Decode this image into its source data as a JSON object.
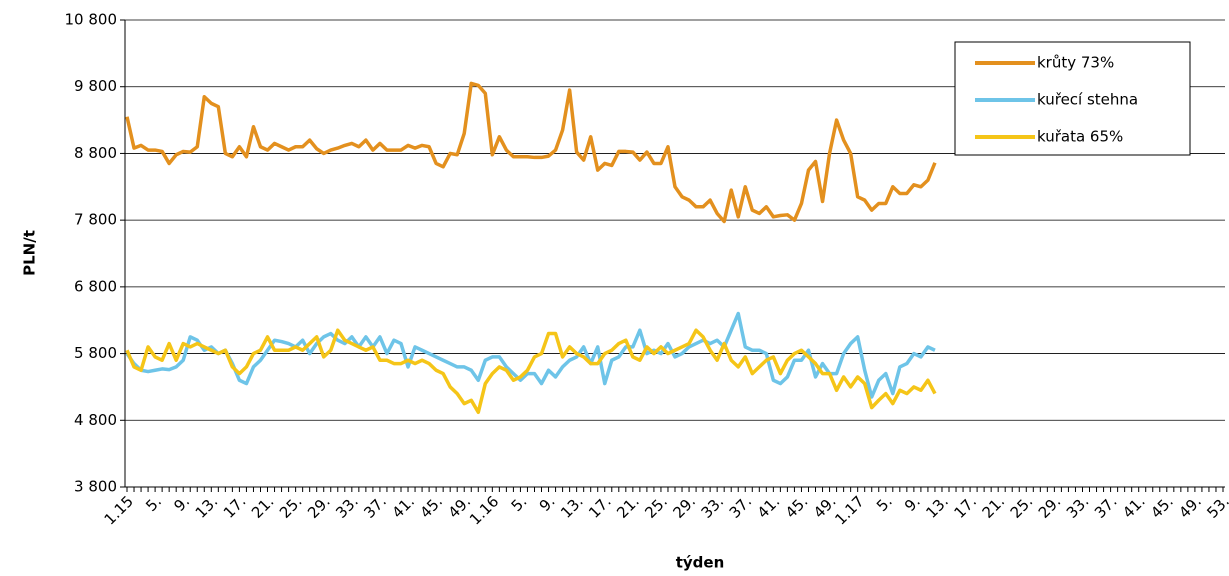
{
  "chart_data": {
    "type": "line",
    "y_label": "PLN/t",
    "x_label": "týden",
    "categories": [
      "1.15",
      null,
      null,
      null,
      "5.",
      null,
      null,
      null,
      "9.",
      null,
      null,
      null,
      "13.",
      null,
      null,
      null,
      "17.",
      null,
      null,
      null,
      "21.",
      null,
      null,
      null,
      "25.",
      null,
      null,
      null,
      "29.",
      null,
      null,
      null,
      "33.",
      null,
      null,
      null,
      "37.",
      null,
      null,
      null,
      "41.",
      null,
      null,
      null,
      "45.",
      null,
      null,
      null,
      "49.",
      null,
      null,
      null,
      "1.16",
      null,
      null,
      null,
      "5.",
      null,
      null,
      null,
      "9.",
      null,
      null,
      null,
      "13.",
      null,
      null,
      null,
      "17.",
      null,
      null,
      null,
      "21.",
      null,
      null,
      null,
      "25.",
      null,
      null,
      null,
      "29.",
      null,
      null,
      null,
      "33.",
      null,
      null,
      null,
      "37.",
      null,
      null,
      null,
      "41.",
      null,
      null,
      null,
      "45.",
      null,
      null,
      null,
      "49.",
      null,
      null,
      null,
      "1.17",
      null,
      null,
      null,
      "5.",
      null,
      null,
      null,
      "9.",
      null,
      null,
      null,
      "13.",
      null,
      null,
      null,
      "17.",
      null,
      null,
      null,
      "21.",
      null,
      null,
      null,
      "25.",
      null,
      null,
      null,
      "29.",
      null,
      null,
      null,
      "33.",
      null,
      null,
      null,
      "37.",
      null,
      null,
      null,
      "41.",
      null,
      null,
      null,
      "45.",
      null,
      null,
      null,
      "49.",
      null,
      null,
      null,
      "53."
    ],
    "series": [
      {
        "name": "krůty 73%",
        "color": "#e3901e",
        "values": [
          9350,
          8880,
          8920,
          8850,
          8850,
          8830,
          8650,
          8780,
          8830,
          8820,
          8900,
          9650,
          9550,
          9500,
          8800,
          8750,
          8900,
          8750,
          9200,
          8900,
          8850,
          8950,
          8900,
          8850,
          8900,
          8900,
          9000,
          8870,
          8800,
          8850,
          8880,
          8920,
          8950,
          8900,
          9000,
          8850,
          8950,
          8850,
          8850,
          8850,
          8920,
          8880,
          8920,
          8900,
          8650,
          8600,
          8800,
          8780,
          9100,
          9850,
          9820,
          9700,
          8780,
          9050,
          8850,
          8750,
          8750,
          8750,
          8740,
          8740,
          8760,
          8850,
          9150,
          9750,
          8820,
          8700,
          9050,
          8550,
          8650,
          8620,
          8830,
          8830,
          8820,
          8700,
          8820,
          8650,
          8650,
          8900,
          8300,
          8150,
          8100,
          8000,
          8000,
          8100,
          7900,
          7780,
          8250,
          7850,
          8300,
          7950,
          7900,
          8000,
          7850,
          7870,
          7880,
          7800,
          8050,
          8550,
          8680,
          8080,
          8800,
          9300,
          9000,
          8800,
          8150,
          8100,
          7950,
          8050,
          8050,
          8300,
          8200,
          8200,
          8330,
          8300,
          8400,
          8660,
          null,
          null,
          null,
          null,
          null,
          null,
          null,
          null,
          null,
          null,
          null,
          null,
          null,
          null,
          null,
          null,
          null,
          null,
          null,
          null,
          null,
          null,
          null,
          null,
          null,
          null,
          null,
          null,
          null,
          null,
          null,
          null,
          null,
          null,
          null,
          null,
          null,
          null,
          null,
          null,
          null
        ]
      },
      {
        "name": "kuřecí stehna",
        "color": "#6ec4e8",
        "values": [
          5800,
          5650,
          5550,
          5530,
          5550,
          5570,
          5560,
          5600,
          5700,
          6050,
          6000,
          5850,
          5900,
          5800,
          5850,
          5650,
          5400,
          5350,
          5600,
          5700,
          5850,
          6000,
          5980,
          5950,
          5900,
          6000,
          5800,
          5950,
          6050,
          6100,
          6000,
          5950,
          6050,
          5900,
          6050,
          5900,
          6050,
          5800,
          6000,
          5950,
          5600,
          5900,
          5850,
          5800,
          5750,
          5700,
          5650,
          5600,
          5600,
          5550,
          5400,
          5700,
          5750,
          5750,
          5600,
          5500,
          5400,
          5500,
          5500,
          5350,
          5550,
          5450,
          5600,
          5700,
          5750,
          5900,
          5650,
          5900,
          5350,
          5700,
          5750,
          5900,
          5900,
          6150,
          5800,
          5850,
          5800,
          5950,
          5750,
          5800,
          5900,
          5950,
          6000,
          5950,
          6000,
          5900,
          6150,
          6400,
          5900,
          5850,
          5850,
          5800,
          5400,
          5350,
          5450,
          5700,
          5700,
          5850,
          5450,
          5650,
          5500,
          5500,
          5800,
          5950,
          6050,
          5550,
          5150,
          5400,
          5500,
          5200,
          5600,
          5650,
          5800,
          5750,
          5900,
          5850,
          null,
          null,
          null,
          null,
          null,
          null,
          null,
          null,
          null,
          null,
          null,
          null,
          null,
          null,
          null,
          null,
          null,
          null,
          null,
          null,
          null,
          null,
          null,
          null,
          null,
          null,
          null,
          null,
          null,
          null,
          null,
          null,
          null,
          null,
          null,
          null,
          null,
          null,
          null,
          null,
          null
        ]
      },
      {
        "name": "kuřata 65%",
        "color": "#f5c518",
        "values": [
          5850,
          5600,
          5550,
          5900,
          5750,
          5700,
          5950,
          5700,
          5950,
          5900,
          5950,
          5900,
          5850,
          5800,
          5850,
          5600,
          5500,
          5600,
          5800,
          5850,
          6050,
          5850,
          5850,
          5850,
          5900,
          5850,
          5950,
          6050,
          5750,
          5850,
          6150,
          6000,
          5950,
          5900,
          5850,
          5900,
          5700,
          5700,
          5650,
          5650,
          5700,
          5650,
          5700,
          5650,
          5550,
          5500,
          5300,
          5200,
          5050,
          5100,
          4920,
          5350,
          5500,
          5600,
          5550,
          5400,
          5450,
          5550,
          5750,
          5800,
          6100,
          6100,
          5750,
          5900,
          5800,
          5750,
          5650,
          5650,
          5800,
          5850,
          5950,
          6000,
          5750,
          5700,
          5900,
          5800,
          5900,
          5800,
          5850,
          5900,
          5950,
          6150,
          6050,
          5850,
          5700,
          5950,
          5700,
          5600,
          5750,
          5500,
          5600,
          5700,
          5750,
          5500,
          5700,
          5800,
          5850,
          5750,
          5650,
          5500,
          5500,
          5250,
          5450,
          5300,
          5450,
          5350,
          4990,
          5100,
          5200,
          5050,
          5250,
          5200,
          5300,
          5250,
          5400,
          5200,
          null,
          null,
          null,
          null,
          null,
          null,
          null,
          null,
          null,
          null,
          null,
          null,
          null,
          null,
          null,
          null,
          null,
          null,
          null,
          null,
          null,
          null,
          null,
          null,
          null,
          null,
          null,
          null,
          null,
          null,
          null,
          null,
          null,
          null,
          null,
          null,
          null,
          null,
          null,
          null,
          null
        ]
      }
    ],
    "ylim": [
      3800,
      10800
    ],
    "yticks": [
      {
        "value": 3800,
        "label": "3 800"
      },
      {
        "value": 4800,
        "label": "4 800"
      },
      {
        "value": 5800,
        "label": "5 800"
      },
      {
        "value": 6800,
        "label": "6 800"
      },
      {
        "value": 7800,
        "label": "7 800"
      },
      {
        "value": 8800,
        "label": "8 800"
      },
      {
        "value": 9800,
        "label": "9 800"
      },
      {
        "value": 10800,
        "label": "10 800"
      }
    ],
    "grid": true,
    "legend": "top-right"
  }
}
